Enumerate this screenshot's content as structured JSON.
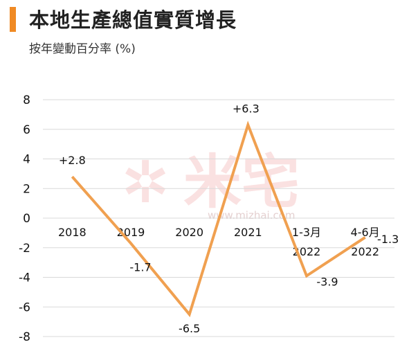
{
  "header": {
    "title": "本地生產總值實質增長",
    "subtitle": "按年變動百分率 (%)",
    "accent_color": "#f08a24"
  },
  "watermark": {
    "brand": "米宅",
    "url": "www.mizhai.com"
  },
  "chart_data": {
    "type": "line",
    "categories": [
      [
        "2018"
      ],
      [
        "2019"
      ],
      [
        "2020"
      ],
      [
        "2021"
      ],
      [
        "1-3月",
        "2022"
      ],
      [
        "4-6月",
        "2022"
      ]
    ],
    "values": [
      2.8,
      -1.7,
      -6.5,
      6.3,
      -3.9,
      -1.3
    ],
    "data_labels": [
      "+2.8",
      "-1.7",
      "-6.5",
      "+6.3",
      "-3.9",
      "-1.3"
    ],
    "y_ticks": [
      "8",
      "6",
      "4",
      "2",
      "0",
      "-2",
      "-4",
      "-6",
      "-8"
    ],
    "ylim": [
      -8,
      8
    ],
    "grid": true,
    "line_color": "#f0a050",
    "grid_color": "#d9d9d9"
  }
}
